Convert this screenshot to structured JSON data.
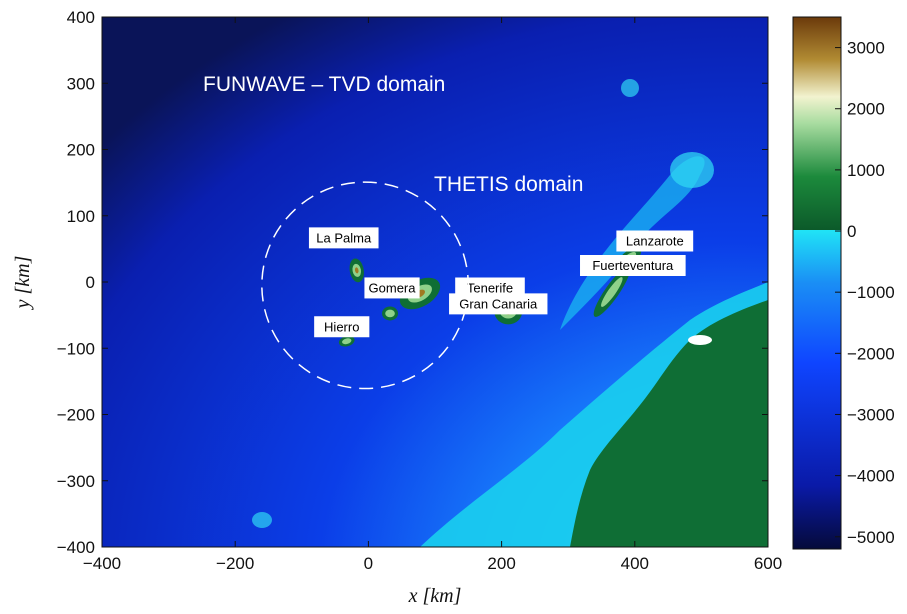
{
  "chart_data": {
    "type": "heatmap",
    "title": "",
    "xlabel": "x [km]",
    "ylabel": "y [km]",
    "xlim": [
      -400,
      600
    ],
    "ylim": [
      -400,
      400
    ],
    "x_ticks": [
      "−400",
      "−200",
      "0",
      "200",
      "400",
      "600"
    ],
    "y_ticks": [
      "400",
      "300",
      "200",
      "100",
      "0",
      "−100",
      "−200",
      "−300",
      "−400"
    ],
    "colorbar": {
      "range": [
        -5200,
        3500
      ],
      "ticks": [
        "3000",
        "2000",
        "1000",
        "0",
        "−1000",
        "−2000",
        "−3000",
        "−4000",
        "−5000"
      ],
      "tick_values": [
        3000,
        2000,
        1000,
        0,
        -1000,
        -2000,
        -3000,
        -4000,
        -5000
      ],
      "colors": {
        "deep": "#0a0f4a",
        "ocean": "#0a2ee0",
        "shelf": "#19d8ee",
        "lowland": "#0f6e35",
        "hills": "#8fd18a",
        "highland": "#efeec8",
        "mountain": "#a07a22",
        "peak": "#6b3a0b"
      }
    },
    "annotations": {
      "funwave_domain": "FUNWAVE – TVD domain",
      "thetis_domain": "THETIS domain"
    },
    "thetis_circle": {
      "center": [
        -5,
        -5
      ],
      "radius_km": 155
    },
    "islands": [
      {
        "name": "La Palma",
        "x": -10,
        "y": 10
      },
      {
        "name": "Tenerife",
        "x": 115,
        "y": -40
      },
      {
        "name": "Gomera",
        "x": 55,
        "y": -55
      },
      {
        "name": "Hierro",
        "x": -25,
        "y": -100
      },
      {
        "name": "Gran Canaria",
        "x": 225,
        "y": -70
      },
      {
        "name": "Lanzarote",
        "x": 415,
        "y": 40
      },
      {
        "name": "Fuerteventura",
        "x": 370,
        "y": 0
      }
    ]
  }
}
